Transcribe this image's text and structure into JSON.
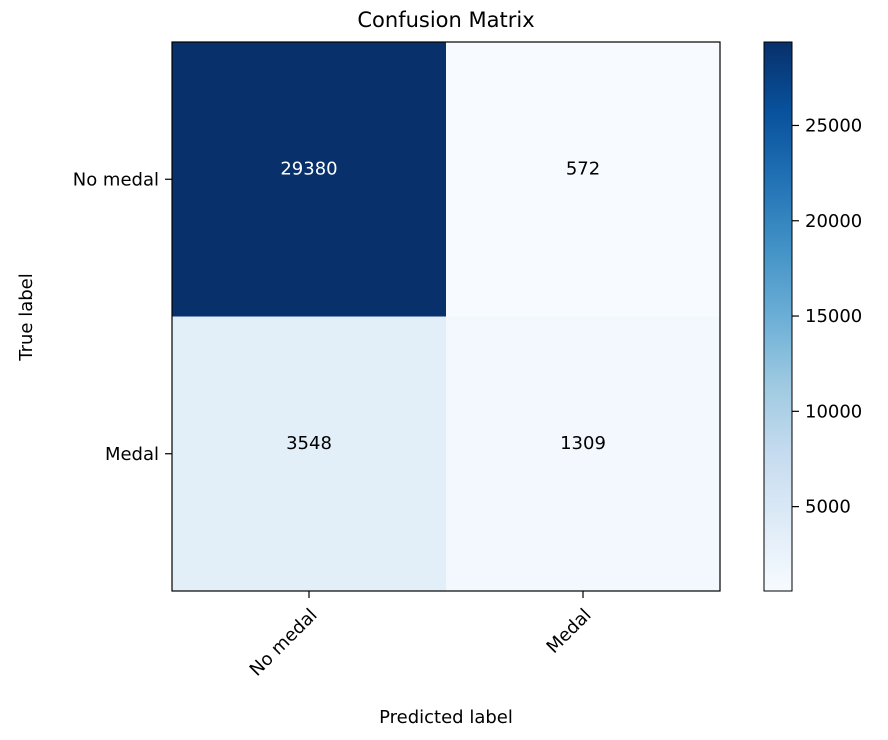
{
  "chart_data": {
    "type": "heatmap",
    "title": "Confusion Matrix",
    "xlabel": "Predicted label",
    "ylabel": "True label",
    "x_categories": [
      "No medal",
      "Medal"
    ],
    "y_categories": [
      "No medal",
      "Medal"
    ],
    "values": [
      [
        29380,
        572
      ],
      [
        3548,
        1309
      ]
    ],
    "colormap": "Blues",
    "colorbar": {
      "min": 572,
      "max": 29380,
      "ticks": [
        5000,
        10000,
        15000,
        20000,
        25000
      ],
      "tick_labels": [
        "5000",
        "10000",
        "15000",
        "20000",
        "25000"
      ]
    }
  }
}
